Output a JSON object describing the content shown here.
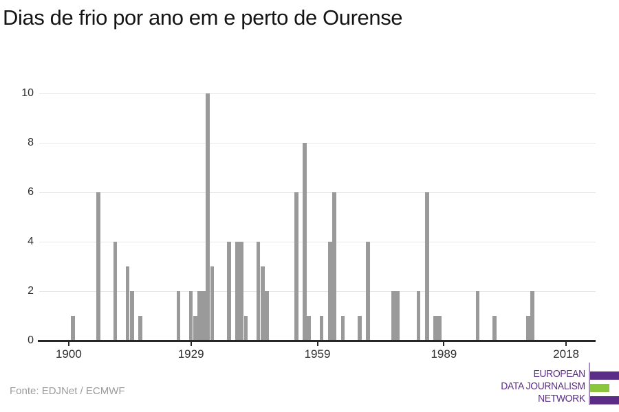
{
  "title": "Dias de frio por ano em e perto de Ourense",
  "source": "Fonte: EDJNet / ECMWF",
  "logo": {
    "line1": "EUROPEAN",
    "line2": "DATA JOURNALISM",
    "line3": "NETWORK",
    "purple": "#5c2d87",
    "green": "#8cc63e"
  },
  "colors": {
    "bar": "#9a9a9a",
    "gridline": "#e7e7e7",
    "axis": "#262626",
    "tick_label": "#2f2f2f",
    "title_text": "#141414",
    "source_text": "#9b9b9b"
  },
  "chart_data": {
    "type": "bar",
    "title": "Dias de frio por ano em e perto de Ourense",
    "xlabel": "",
    "ylabel": "",
    "x": [
      1901,
      1907,
      1911,
      1914,
      1915,
      1917,
      1926,
      1929,
      1930,
      1931,
      1932,
      1933,
      1934,
      1938,
      1940,
      1941,
      1942,
      1945,
      1946,
      1947,
      1954,
      1956,
      1957,
      1960,
      1962,
      1963,
      1965,
      1969,
      1971,
      1977,
      1978,
      1983,
      1985,
      1987,
      1988,
      1997,
      2001,
      2009,
      2010
    ],
    "values": [
      1,
      6,
      4,
      3,
      2,
      1,
      2,
      2,
      1,
      2,
      2,
      10,
      3,
      4,
      4,
      4,
      1,
      4,
      3,
      2,
      6,
      8,
      1,
      1,
      4,
      6,
      1,
      1,
      4,
      2,
      2,
      2,
      6,
      1,
      1,
      2,
      1,
      1,
      2
    ],
    "x_tick_labels": [
      1900,
      1929,
      1959,
      1989,
      2018
    ],
    "y_tick_labels": [
      0,
      2,
      4,
      6,
      8,
      10
    ],
    "xlim": [
      1893,
      2025
    ],
    "ylim": [
      0,
      10
    ],
    "grid": "horizontal",
    "legend": "none"
  }
}
